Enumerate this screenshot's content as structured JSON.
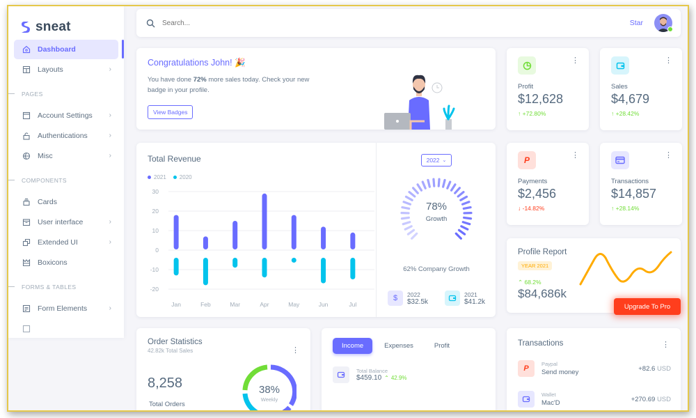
{
  "brand": {
    "name": "sneat",
    "color": "#696cff"
  },
  "sidebar": {
    "items": [
      {
        "label": "Dashboard",
        "icon": "home-icon",
        "active": true
      },
      {
        "label": "Layouts",
        "icon": "layout-icon",
        "chevron": true
      }
    ],
    "sections": [
      {
        "header": "PAGES",
        "items": [
          {
            "label": "Account Settings",
            "icon": "window-icon",
            "chevron": true
          },
          {
            "label": "Authentications",
            "icon": "lock-icon",
            "chevron": true
          },
          {
            "label": "Misc",
            "icon": "cube-icon",
            "chevron": true
          }
        ]
      },
      {
        "header": "COMPONENTS",
        "items": [
          {
            "label": "Cards",
            "icon": "collection-icon"
          },
          {
            "label": "User interface",
            "icon": "box-icon",
            "chevron": true
          },
          {
            "label": "Extended UI",
            "icon": "copy-icon",
            "chevron": true
          },
          {
            "label": "Boxicons",
            "icon": "crown-icon"
          }
        ]
      },
      {
        "header": "FORMS & TABLES",
        "items": [
          {
            "label": "Form Elements",
            "icon": "detail-icon",
            "chevron": true
          }
        ]
      }
    ]
  },
  "topbar": {
    "search_placeholder": "Search...",
    "star_label": "Star",
    "status_color": "#71dd37"
  },
  "congrats": {
    "title": "Congratulations John! 🎉",
    "text_before": "You have done ",
    "text_bold": "72%",
    "text_after": " more sales today. Check your new badge in your profile.",
    "button": "View Badges"
  },
  "stats": [
    {
      "label": "Profit",
      "value": "$12,628",
      "delta": "+72.80%",
      "direction": "up",
      "icon": "chart-pie-icon",
      "icon_color": "#71dd37",
      "icon_bg": "#e8fadf"
    },
    {
      "label": "Sales",
      "value": "$4,679",
      "delta": "+28.42%",
      "direction": "up",
      "icon": "wallet-icon",
      "icon_color": "#03c3ec",
      "icon_bg": "#d7f5fc"
    },
    {
      "label": "Payments",
      "value": "$2,456",
      "delta": "-14.82%",
      "direction": "down",
      "icon": "paypal-icon",
      "icon_color": "#ff3e1d",
      "icon_bg": "#ffe0db"
    },
    {
      "label": "Transactions",
      "value": "$14,857",
      "delta": "+28.14%",
      "direction": "up",
      "icon": "credit-card-icon",
      "icon_color": "#696cff",
      "icon_bg": "#e7e7ff"
    }
  ],
  "revenue": {
    "title": "Total Revenue",
    "legend": [
      "2021",
      "2020"
    ]
  },
  "chart_data": {
    "type": "bar",
    "title": "Total Revenue",
    "categories": [
      "Jan",
      "Feb",
      "Mar",
      "Apr",
      "May",
      "Jun",
      "Jul"
    ],
    "series": [
      {
        "name": "2021",
        "color": "#696cff",
        "values": [
          18,
          7,
          15,
          29,
          18,
          12,
          9
        ]
      },
      {
        "name": "2020",
        "color": "#03c3ec",
        "values": [
          -13,
          -18,
          -9,
          -14,
          -5,
          -17,
          -15
        ]
      }
    ],
    "yticks": [
      30,
      20,
      10,
      0,
      -10,
      -20
    ],
    "ylim": [
      -20,
      30
    ],
    "grid": true,
    "legend_position": "top-left"
  },
  "growth": {
    "year_select": "2022",
    "percent": "78%",
    "label": "Growth",
    "company_growth": "62% Company Growth",
    "items": [
      {
        "year": "2022",
        "value": "$32.5k",
        "icon": "dollar-icon",
        "color": "#696cff",
        "bg": "#e7e7ff"
      },
      {
        "year": "2021",
        "value": "$41.2k",
        "icon": "wallet-icon",
        "color": "#03c3ec",
        "bg": "#d7f5fc"
      }
    ]
  },
  "profile_report": {
    "title": "Profile Report",
    "badge": "YEAR 2021",
    "delta": "68.2%",
    "value": "$84,686k",
    "line_color": "#ffab00"
  },
  "upgrade_button": "Upgrade To Pro",
  "order_stats": {
    "title": "Order Statistics",
    "subtitle": "42.82k Total Sales",
    "total": "8,258",
    "total_label": "Total Orders",
    "donut_percent": "38%",
    "donut_label": "Weekly"
  },
  "income": {
    "tabs": [
      "Income",
      "Expenses",
      "Profit"
    ],
    "active_tab": "Income",
    "balance_label": "Total Balance",
    "balance_value": "$459.10",
    "balance_delta": "42.9%"
  },
  "transactions": {
    "title": "Transactions",
    "rows": [
      {
        "source": "Paypal",
        "name": "Send money",
        "amount": "+82.6",
        "currency": "USD",
        "icon": "paypal-icon"
      },
      {
        "source": "Wallet",
        "name": "Mac'D",
        "amount": "+270.69",
        "currency": "USD",
        "icon": "wallet-icon"
      }
    ]
  }
}
